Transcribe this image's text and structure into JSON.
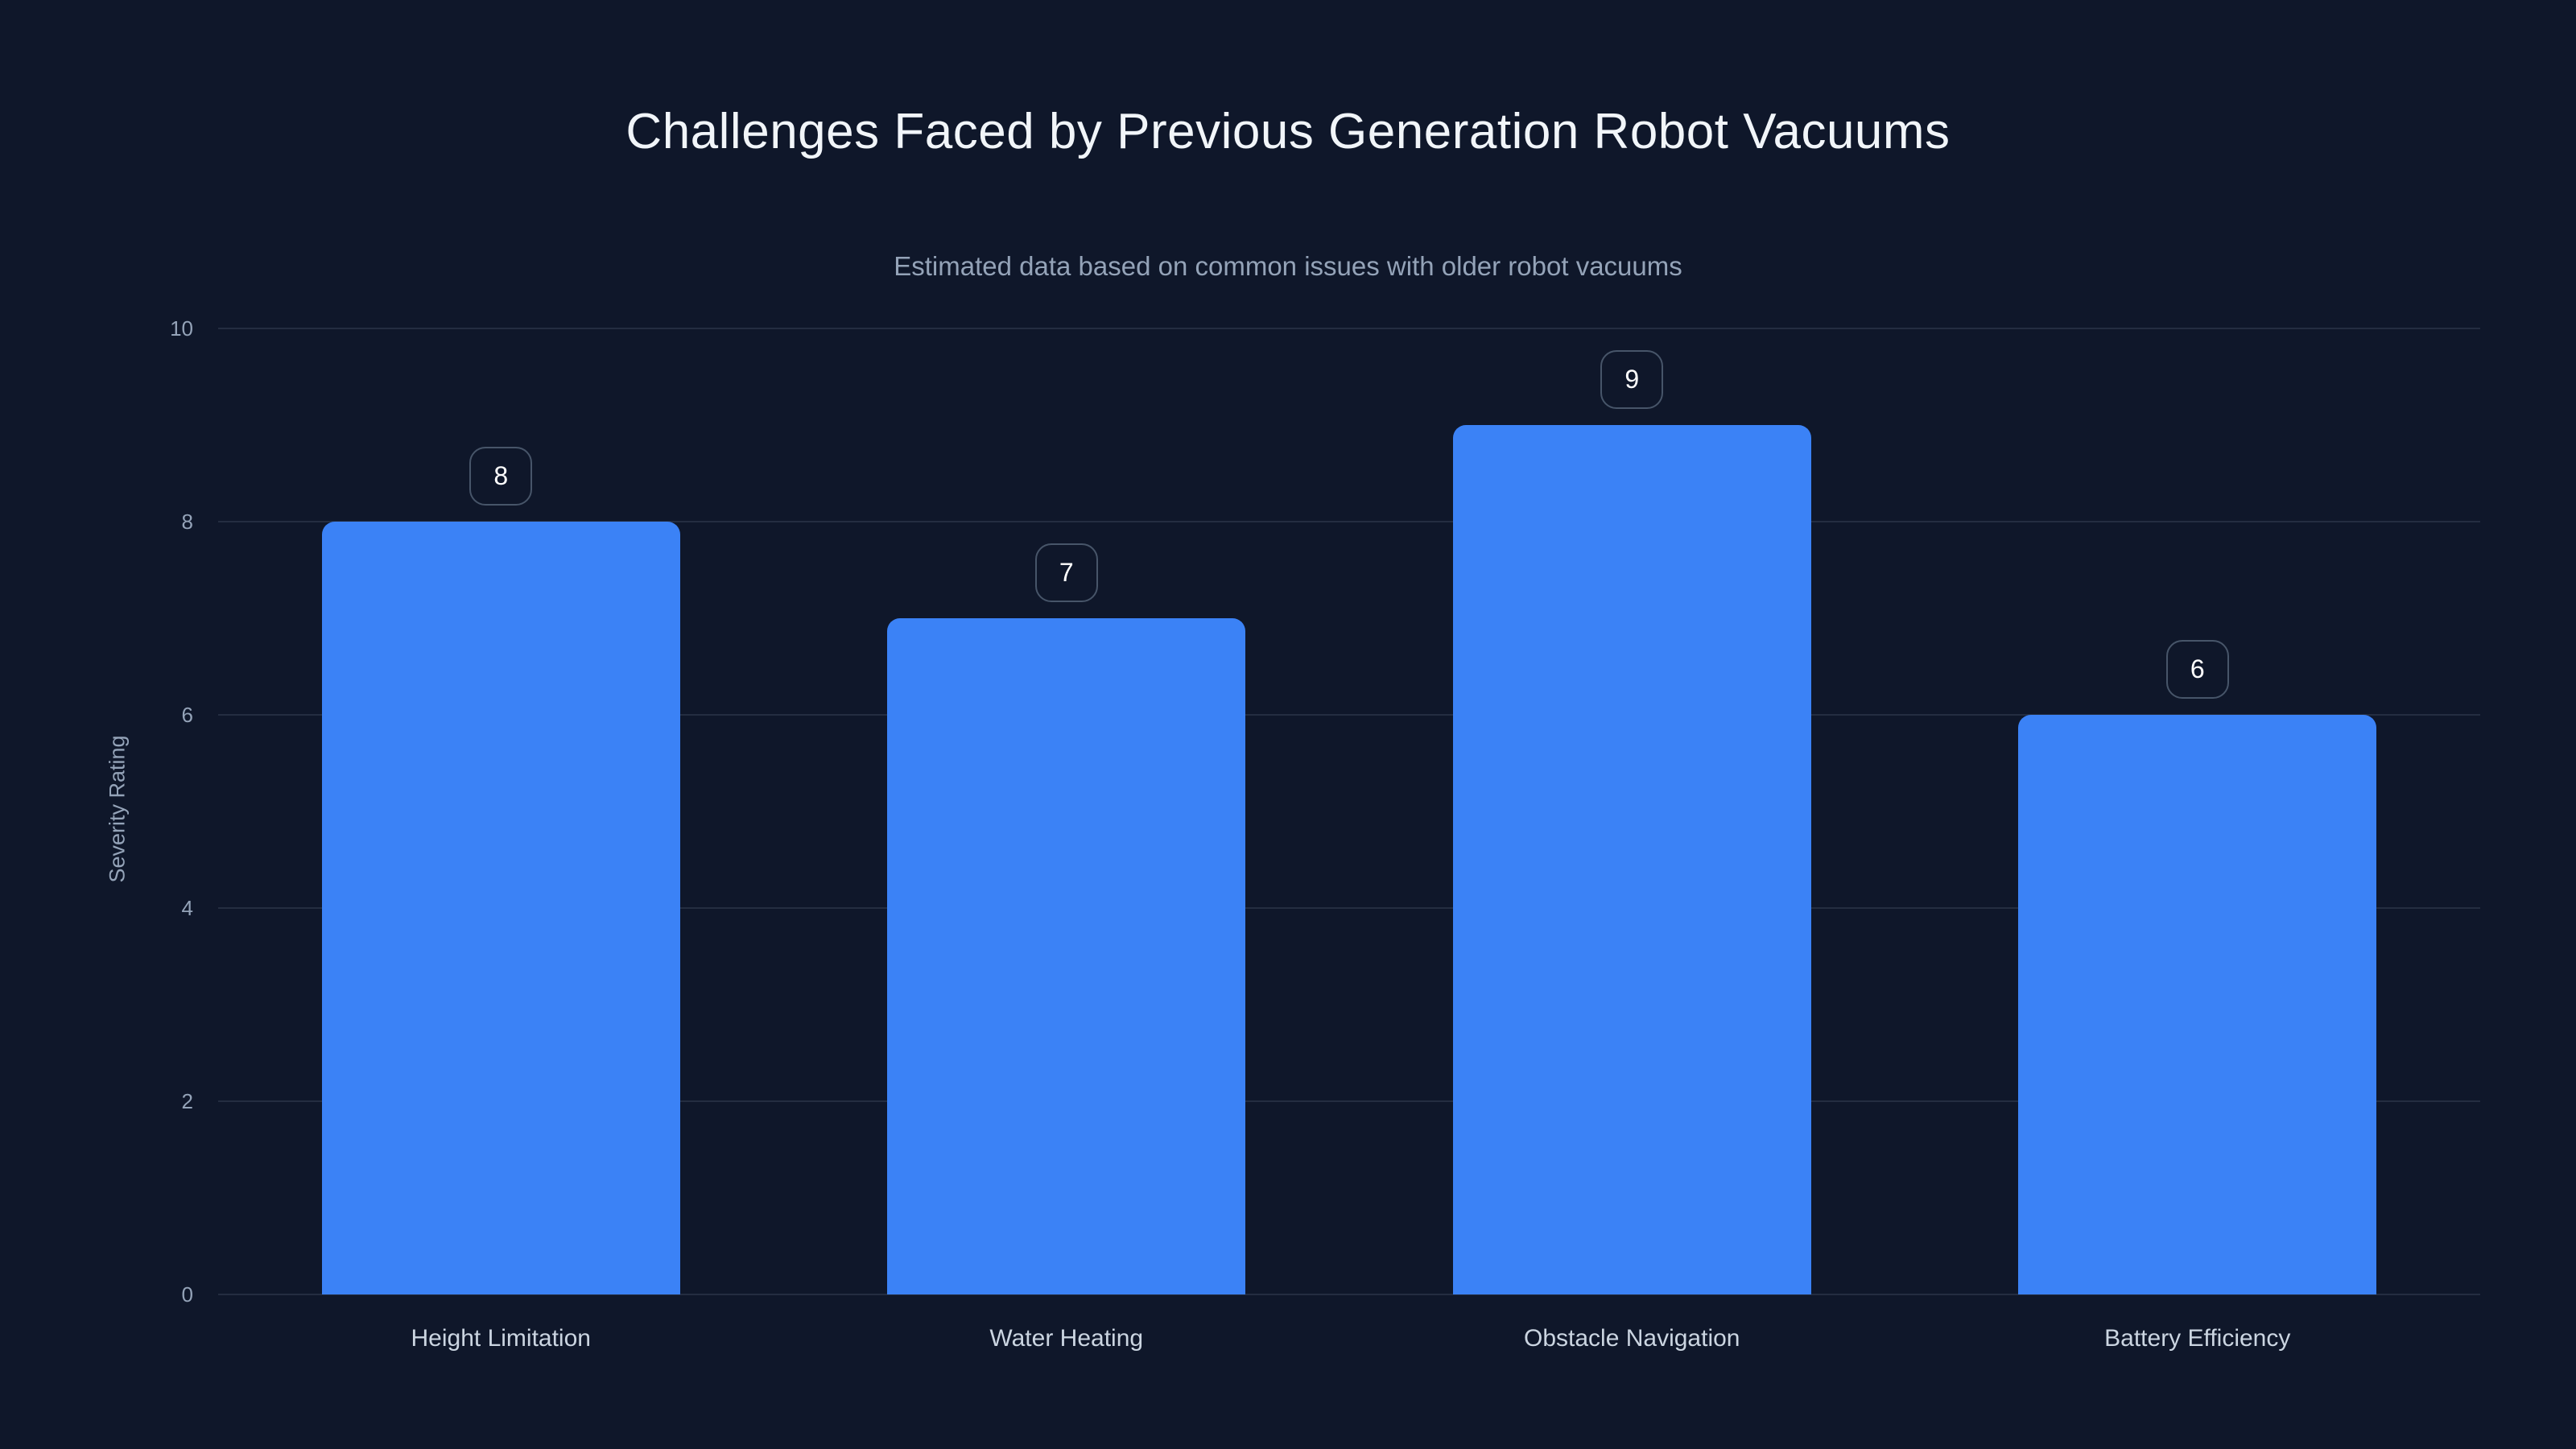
{
  "chart_data": {
    "type": "bar",
    "title": "Challenges Faced by Previous Generation Robot Vacuums",
    "subtitle": "Estimated data based on common issues with older robot vacuums",
    "categories": [
      "Height Limitation",
      "Water Heating",
      "Obstacle Navigation",
      "Battery Efficiency"
    ],
    "values": [
      8,
      7,
      9,
      6
    ],
    "xlabel": "",
    "ylabel": "Severity Rating",
    "ylim": [
      0,
      10
    ],
    "yticks": [
      0,
      2,
      4,
      6,
      8,
      10
    ],
    "grid": "horizontal gridlines only, no axis lines",
    "legend": "none",
    "value_labels": "numeric value in rounded outlined box above each bar",
    "colors": {
      "background": "#0f172a",
      "bar": "#3b82f6",
      "title_text": "#f1f5f9",
      "subtitle_text": "#94a3b8",
      "ytick_text": "#94a3b8",
      "y_axis_title_text": "#94a3b8",
      "category_text": "#cbd5e1",
      "gridline": "rgba(148,163,184,0.16)",
      "badge_border": "#475569",
      "badge_text": "#ffffff"
    }
  }
}
